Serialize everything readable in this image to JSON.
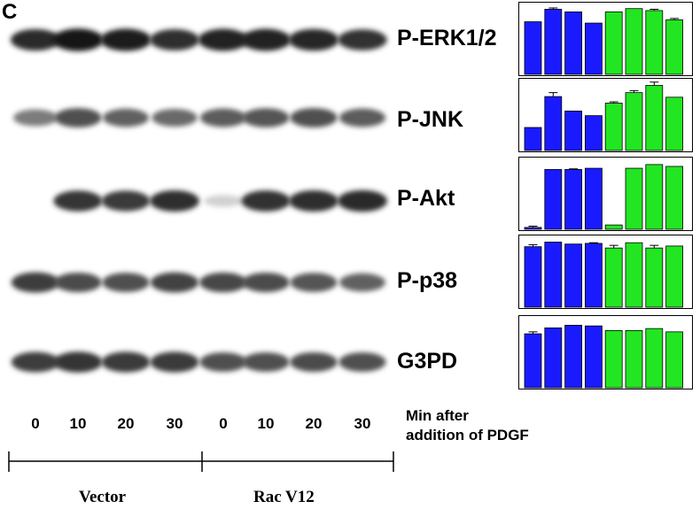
{
  "figure": {
    "panel_letter": "C",
    "proteins": [
      "P-ERK1/2",
      "P-JNK",
      "P-Akt",
      "P-p38",
      "G3PD"
    ],
    "lanes": [
      "0",
      "10",
      "20",
      "30",
      "0",
      "10",
      "20",
      "30"
    ],
    "axis_note": [
      "Min after",
      "addition of PDGF"
    ],
    "groups": [
      "Vector",
      "Rac V12"
    ],
    "colors": {
      "vector": "#1a1aff",
      "racv12": "#22e622"
    },
    "band_intensity": [
      [
        0.88,
        0.96,
        0.95,
        0.86,
        0.92,
        0.92,
        0.9,
        0.84
      ],
      [
        0.5,
        0.7,
        0.62,
        0.58,
        0.64,
        0.68,
        0.7,
        0.64
      ],
      [
        0.0,
        0.82,
        0.8,
        0.86,
        0.1,
        0.84,
        0.86,
        0.88
      ],
      [
        0.78,
        0.72,
        0.7,
        0.76,
        0.74,
        0.72,
        0.68,
        0.62
      ],
      [
        0.78,
        0.82,
        0.8,
        0.8,
        0.7,
        0.7,
        0.72,
        0.7
      ]
    ]
  },
  "chart_data": [
    {
      "type": "bar",
      "name": "",
      "values": [
        0.8,
        0.99,
        0.95,
        0.78,
        0.95,
        1.0,
        0.97,
        0.83
      ],
      "errors": [
        0.0,
        0.02,
        0.0,
        0.0,
        0.0,
        0.0,
        0.02,
        0.02
      ],
      "ylim": [
        0,
        1.05
      ]
    },
    {
      "type": "bar",
      "name": "",
      "values": [
        0.35,
        0.82,
        0.6,
        0.53,
        0.72,
        0.88,
        0.99,
        0.81
      ],
      "errors": [
        0.0,
        0.06,
        0.0,
        0.0,
        0.02,
        0.03,
        0.05,
        0.0
      ],
      "ylim": [
        0,
        1.05
      ]
    },
    {
      "type": "bar",
      "name": "",
      "values": [
        0.03,
        0.97,
        0.97,
        0.99,
        0.07,
        0.99,
        1.05,
        1.02
      ],
      "errors": [
        0.02,
        0.0,
        0.01,
        0.0,
        0.0,
        0.0,
        0.0,
        0.0
      ],
      "ylim": [
        0,
        1.12
      ]
    },
    {
      "type": "bar",
      "name": "",
      "values": [
        0.92,
        0.99,
        0.96,
        0.97,
        0.9,
        0.98,
        0.9,
        0.93
      ],
      "errors": [
        0.03,
        0.0,
        0.0,
        0.01,
        0.04,
        0.0,
        0.04,
        0.0
      ],
      "ylim": [
        0,
        1.05
      ]
    },
    {
      "type": "bar",
      "name": "",
      "values": [
        0.82,
        0.91,
        0.95,
        0.94,
        0.87,
        0.87,
        0.9,
        0.85
      ],
      "errors": [
        0.03,
        0.0,
        0.0,
        0.0,
        0.0,
        0.0,
        0.0,
        0.0
      ],
      "ylim": [
        0,
        1.05
      ]
    }
  ]
}
